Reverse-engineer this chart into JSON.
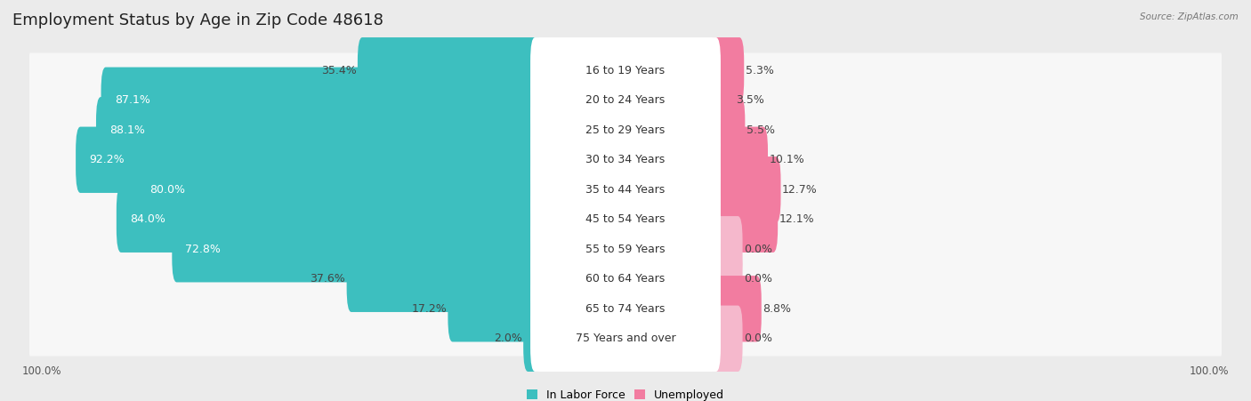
{
  "title": "Employment Status by Age in Zip Code 48618",
  "source": "Source: ZipAtlas.com",
  "categories": [
    "16 to 19 Years",
    "20 to 24 Years",
    "25 to 29 Years",
    "30 to 34 Years",
    "35 to 44 Years",
    "45 to 54 Years",
    "55 to 59 Years",
    "60 to 64 Years",
    "65 to 74 Years",
    "75 Years and over"
  ],
  "labor_force": [
    35.4,
    87.1,
    88.1,
    92.2,
    80.0,
    84.0,
    72.8,
    37.6,
    17.2,
    2.0
  ],
  "unemployed": [
    5.3,
    3.5,
    5.5,
    10.1,
    12.7,
    12.1,
    0.0,
    0.0,
    8.8,
    0.0
  ],
  "color_labor": "#3dbfbf",
  "color_unemployed": "#f27ca0",
  "color_unemployed_light": "#f5b8cc",
  "bg_color": "#ebebeb",
  "row_bg_color": "#f7f7f7",
  "title_fontsize": 13,
  "label_fontsize": 9,
  "cat_fontsize": 9,
  "axis_label_fontsize": 8.5,
  "legend_fontsize": 9,
  "scale": 100
}
